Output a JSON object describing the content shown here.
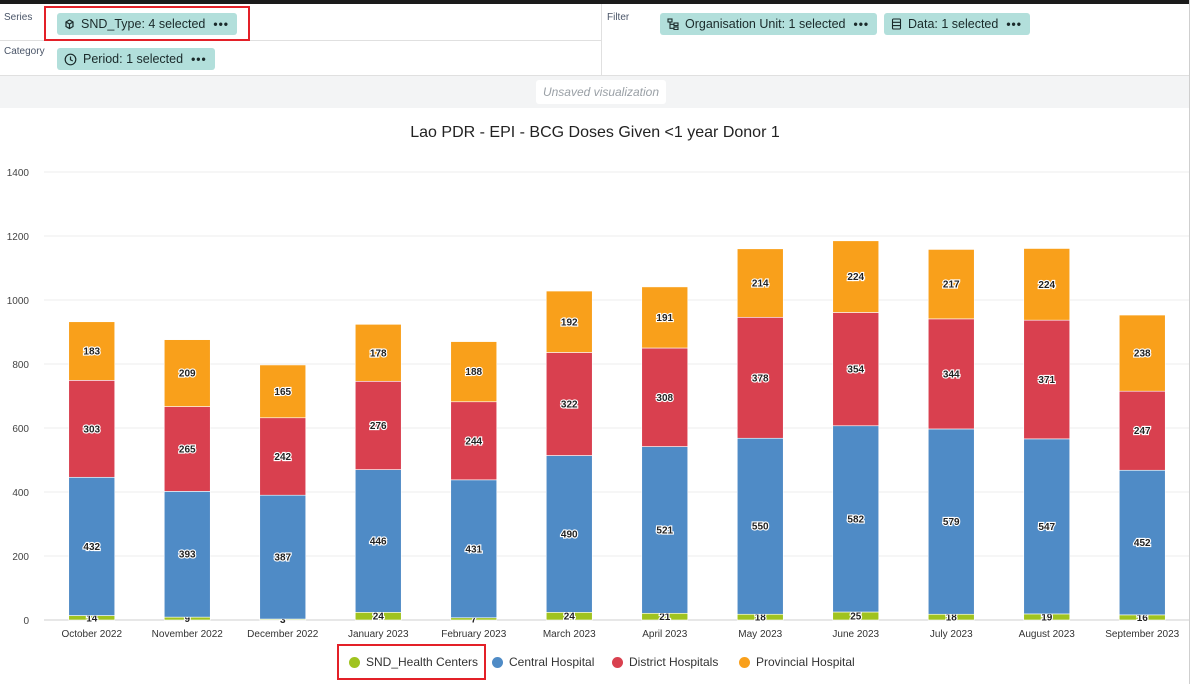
{
  "layout": {
    "series_label": "Series",
    "category_label": "Category",
    "filter_label": "Filter",
    "series_chip": "SND_Type: 4 selected",
    "category_chip": "Period: 1 selected",
    "org_unit_chip": "Organisation Unit: 1 selected",
    "data_chip": "Data: 1 selected",
    "chip_menu": "•••"
  },
  "status": {
    "unsaved": "Unsaved visualization"
  },
  "colors": {
    "highlight": "#e32028",
    "chip": "#b2dfdb",
    "health_centers": "#a0c31f",
    "central": "#4f8bc6",
    "district": "#d9404f",
    "provincial": "#f9a01b"
  },
  "chart_data": {
    "type": "bar",
    "stacked": true,
    "title": "Lao PDR - EPI - BCG Doses Given <1 year Donor 1",
    "xlabel": "",
    "ylabel": "",
    "ylim": [
      0,
      1400
    ],
    "yticks": [
      0,
      200,
      400,
      600,
      800,
      1000,
      1200,
      1400
    ],
    "grid": true,
    "legend_position": "bottom",
    "data_labels": true,
    "categories": [
      "October 2022",
      "November 2022",
      "December 2022",
      "January 2023",
      "February 2023",
      "March 2023",
      "April 2023",
      "May 2023",
      "June 2023",
      "July 2023",
      "August 2023",
      "September 2023"
    ],
    "series": [
      {
        "name": "SND_Health Centers",
        "color": "#a0c31f",
        "values": [
          14,
          9,
          3,
          24,
          7,
          24,
          21,
          18,
          25,
          18,
          19,
          16
        ]
      },
      {
        "name": "Central Hospital",
        "color": "#4f8bc6",
        "values": [
          432,
          393,
          387,
          446,
          431,
          490,
          521,
          550,
          582,
          579,
          547,
          452
        ]
      },
      {
        "name": "District Hospitals",
        "color": "#d9404f",
        "values": [
          303,
          265,
          242,
          276,
          244,
          322,
          308,
          378,
          354,
          344,
          371,
          247
        ]
      },
      {
        "name": "Provincial Hospital",
        "color": "#f9a01b",
        "values": [
          183,
          209,
          165,
          178,
          188,
          192,
          191,
          214,
          224,
          217,
          224,
          238
        ]
      }
    ]
  }
}
